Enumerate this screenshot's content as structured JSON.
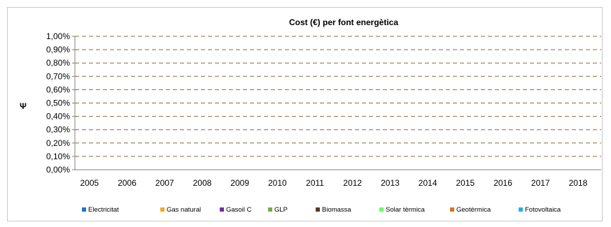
{
  "chart_data": {
    "type": "bar",
    "title": "Cost (€) per font energètica",
    "xlabel": "",
    "ylabel": "Ψ",
    "categories": [
      "2005",
      "2006",
      "2007",
      "2008",
      "2009",
      "2010",
      "2011",
      "2012",
      "2013",
      "2014",
      "2015",
      "2016",
      "2017",
      "2018"
    ],
    "ylim": [
      0,
      0.01
    ],
    "yticks": [
      "0,00%",
      "0,10%",
      "0,20%",
      "0,30%",
      "0,40%",
      "0,50%",
      "0,60%",
      "0,70%",
      "0,80%",
      "0,90%",
      "1,00%"
    ],
    "grid": true,
    "legend_position": "bottom",
    "series": [
      {
        "name": "Electricitat",
        "color": "#1f77c8",
        "values": [
          0,
          0,
          0,
          0,
          0,
          0,
          0,
          0,
          0,
          0,
          0,
          0,
          0,
          0
        ]
      },
      {
        "name": "Gas natural",
        "color": "#f5a623",
        "values": [
          0,
          0,
          0,
          0,
          0,
          0,
          0,
          0,
          0,
          0,
          0,
          0,
          0,
          0
        ]
      },
      {
        "name": "Gasoil C",
        "color": "#7030a0",
        "values": [
          0,
          0,
          0,
          0,
          0,
          0,
          0,
          0,
          0,
          0,
          0,
          0,
          0,
          0
        ]
      },
      {
        "name": "GLP",
        "color": "#70ad47",
        "values": [
          0,
          0,
          0,
          0,
          0,
          0,
          0,
          0,
          0,
          0,
          0,
          0,
          0,
          0
        ]
      },
      {
        "name": "Biomassa",
        "color": "#5c3a1e",
        "values": [
          0,
          0,
          0,
          0,
          0,
          0,
          0,
          0,
          0,
          0,
          0,
          0,
          0,
          0
        ]
      },
      {
        "name": "Solar tèrmica",
        "color": "#66ff66",
        "values": [
          0,
          0,
          0,
          0,
          0,
          0,
          0,
          0,
          0,
          0,
          0,
          0,
          0,
          0
        ]
      },
      {
        "name": "Geotèrmica",
        "color": "#d9731a",
        "values": [
          0,
          0,
          0,
          0,
          0,
          0,
          0,
          0,
          0,
          0,
          0,
          0,
          0,
          0
        ]
      },
      {
        "name": "Fotovoltaica",
        "color": "#1fb4e6",
        "values": [
          0,
          0,
          0,
          0,
          0,
          0,
          0,
          0,
          0,
          0,
          0,
          0,
          0,
          0
        ]
      }
    ],
    "gridline_color": "#8b6b3a"
  }
}
